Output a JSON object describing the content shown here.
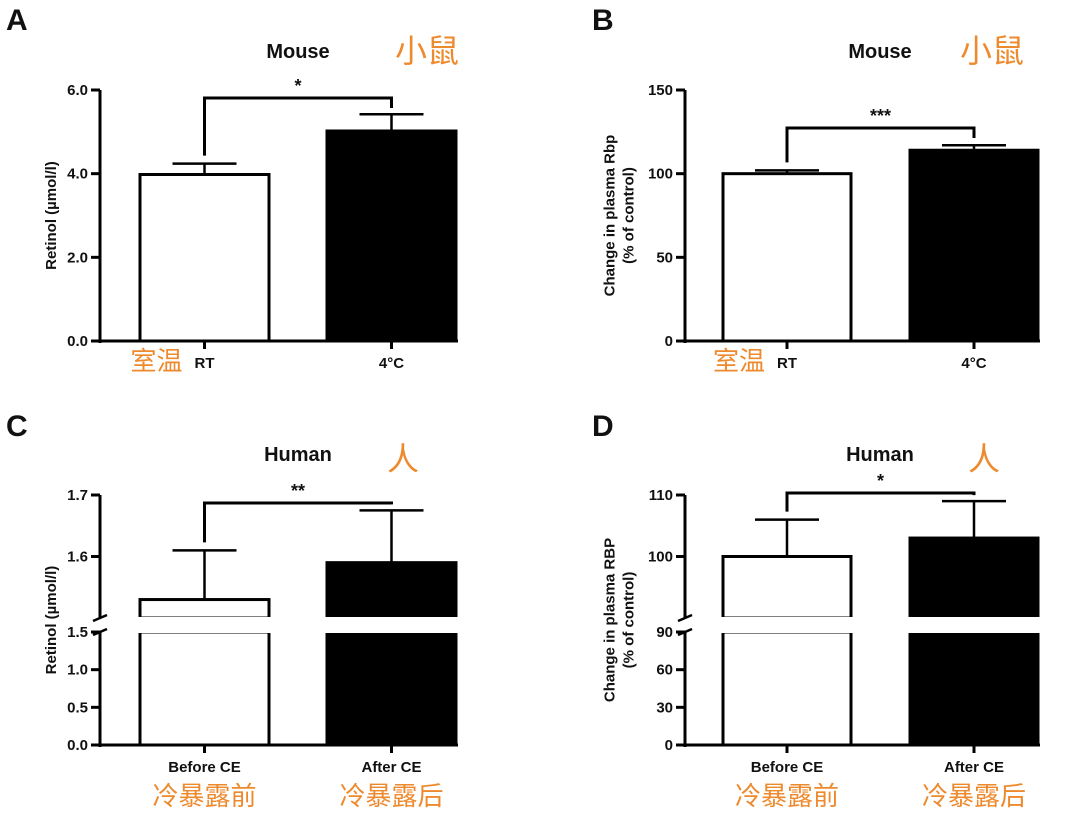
{
  "chart_data": [
    {
      "panel": "A",
      "type": "bar",
      "title": "Mouse",
      "title_cn": "小鼠",
      "ylabel": [
        "Retinol (µmol/l)"
      ],
      "ylim": [
        0,
        6
      ],
      "yticks": [
        "0.0",
        "2.0",
        "4.0",
        "6.0"
      ],
      "categories": [
        "RT",
        "4°C"
      ],
      "category_cn": [
        "室温",
        ""
      ],
      "values": [
        3.98,
        5.02
      ],
      "errors": [
        0.26,
        0.4
      ],
      "bar_colors": [
        "#ffffff",
        "#000000"
      ],
      "significance": "*"
    },
    {
      "panel": "B",
      "type": "bar",
      "title": "Mouse",
      "title_cn": "小鼠",
      "ylabel": [
        "Change in plasma Rbp",
        "(% of control)"
      ],
      "ylim": [
        0,
        150
      ],
      "yticks": [
        "0",
        "50",
        "100",
        "150"
      ],
      "categories": [
        "RT",
        "4°C"
      ],
      "category_cn": [
        "室温",
        ""
      ],
      "values": [
        100,
        114
      ],
      "errors": [
        2,
        3
      ],
      "bar_colors": [
        "#ffffff",
        "#000000"
      ],
      "significance": "***"
    },
    {
      "panel": "C",
      "type": "bar",
      "title": "Human",
      "title_cn": "人",
      "ylabel": [
        "Retinol (µmol/l)"
      ],
      "axis_break": true,
      "ylim_lower": [
        0,
        1.5
      ],
      "yticks_lower": [
        "0.0",
        "0.5",
        "1.0",
        "1.5"
      ],
      "ylim_upper": [
        1.5,
        1.7
      ],
      "yticks_upper": [
        "1.6",
        "1.7"
      ],
      "categories": [
        "Before CE",
        "After CE"
      ],
      "category_cn": [
        "冷暴露前",
        "冷暴露后"
      ],
      "values": [
        1.53,
        1.59
      ],
      "errors": [
        0.08,
        0.085
      ],
      "bar_colors": [
        "#ffffff",
        "#000000"
      ],
      "significance": "**"
    },
    {
      "panel": "D",
      "type": "bar",
      "title": "Human",
      "title_cn": "人",
      "ylabel": [
        "Change in plasma RBP",
        "(% of control)"
      ],
      "axis_break": true,
      "ylim_lower": [
        0,
        90
      ],
      "yticks_lower": [
        "0",
        "30",
        "60",
        "90"
      ],
      "ylim_upper": [
        90,
        110
      ],
      "yticks_upper": [
        "100",
        "110"
      ],
      "categories": [
        "Before CE",
        "After CE"
      ],
      "category_cn": [
        "冷暴露前",
        "冷暴露后"
      ],
      "values": [
        100,
        103
      ],
      "errors": [
        6,
        6
      ],
      "bar_colors": [
        "#ffffff",
        "#000000"
      ],
      "significance": "*"
    }
  ]
}
